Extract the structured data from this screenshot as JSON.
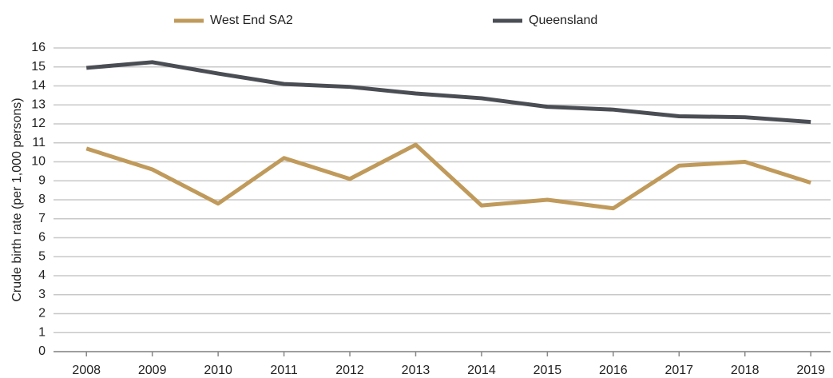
{
  "chart_data": {
    "type": "line",
    "y_label": "Crude birth rate (per 1,000 persons)",
    "categories": [
      "2008",
      "2009",
      "2010",
      "2011",
      "2012",
      "2013",
      "2014",
      "2015",
      "2016",
      "2017",
      "2018",
      "2019"
    ],
    "series": [
      {
        "name": "West End SA2",
        "color": "#c09a5b",
        "values": [
          10.7,
          9.6,
          7.8,
          10.2,
          9.1,
          10.9,
          7.7,
          8.0,
          7.55,
          9.8,
          10.0,
          8.9
        ]
      },
      {
        "name": "Queensland",
        "color": "#4a4e54",
        "values": [
          14.95,
          15.25,
          14.65,
          14.1,
          13.95,
          13.6,
          13.35,
          12.9,
          12.75,
          12.4,
          12.35,
          12.1
        ]
      }
    ],
    "ylim": [
      0,
      16
    ],
    "yticks": [
      0,
      1,
      2,
      3,
      4,
      5,
      6,
      7,
      8,
      9,
      10,
      11,
      12,
      13,
      14,
      15,
      16
    ],
    "grid": true
  }
}
